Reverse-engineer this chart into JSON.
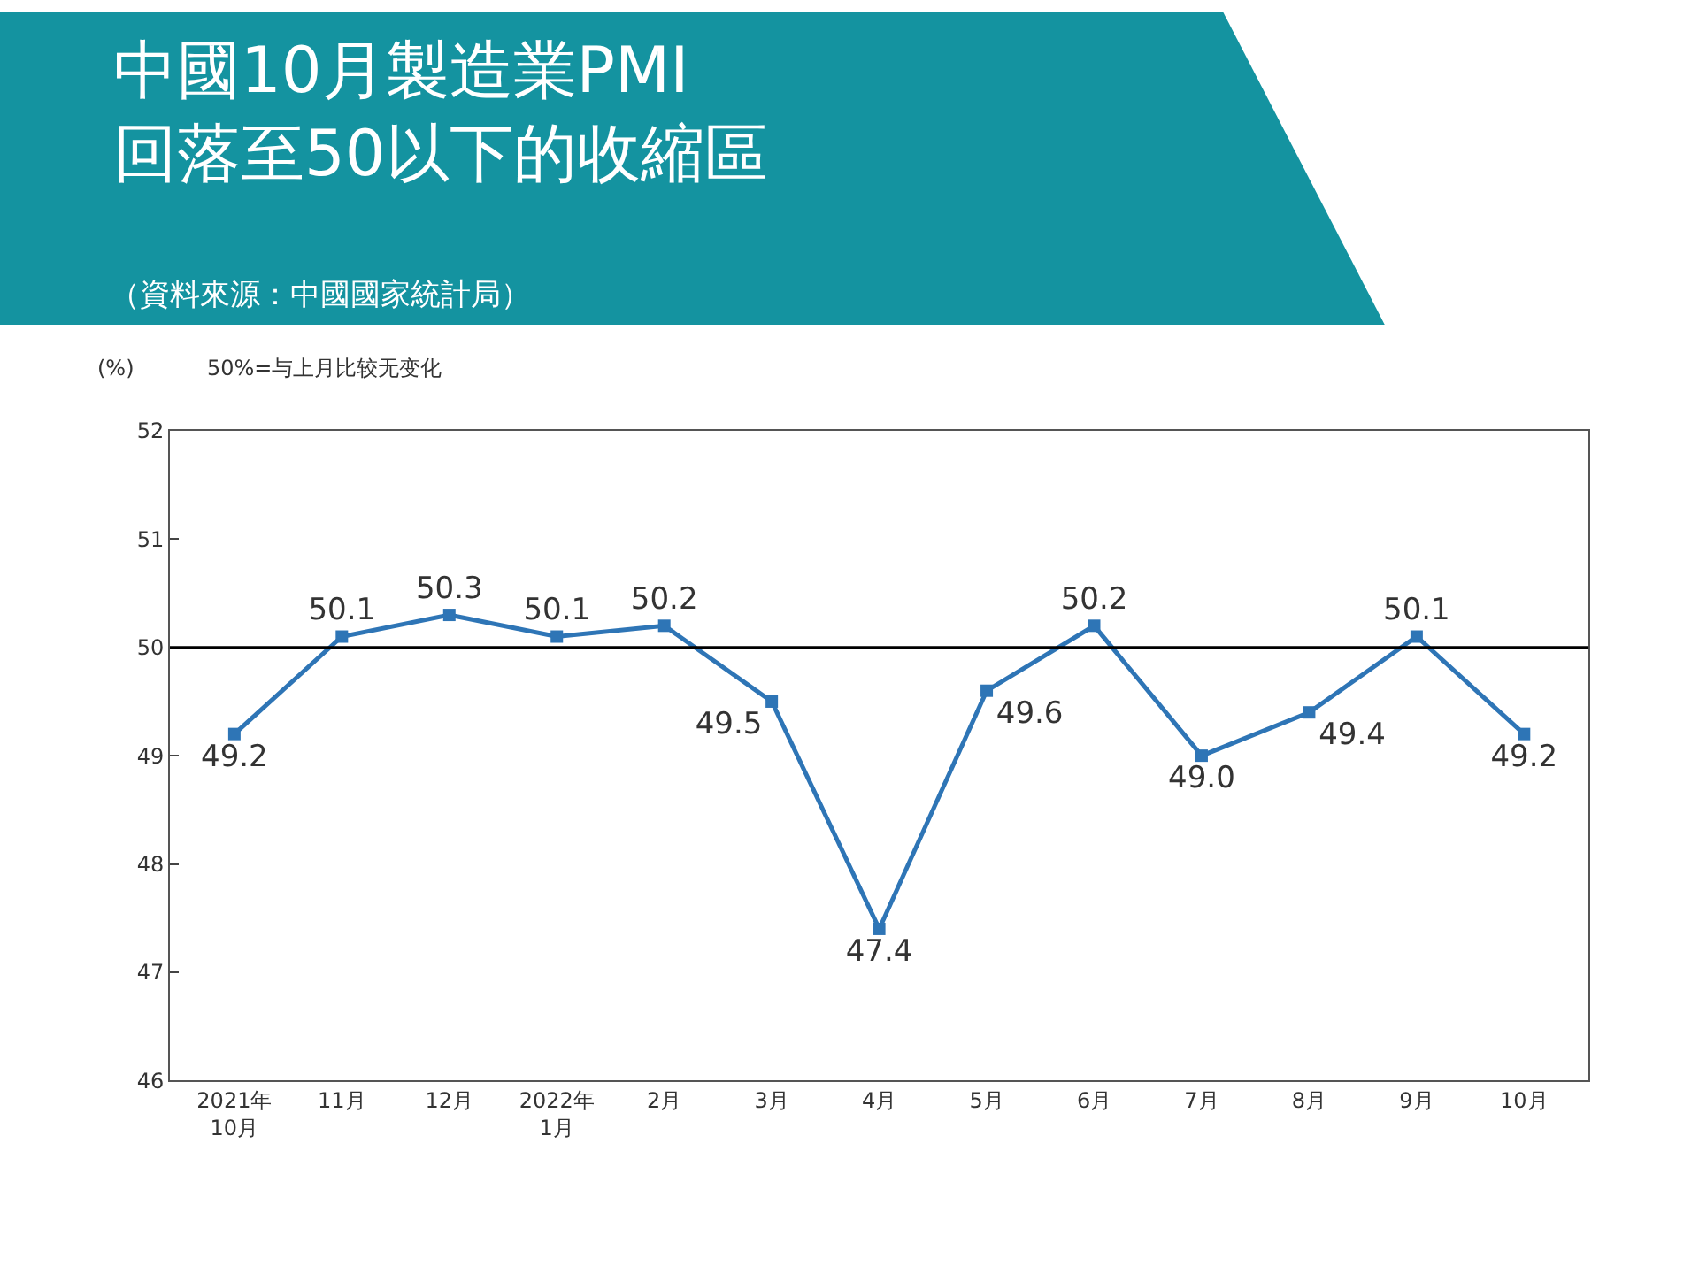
{
  "chart_data": {
    "type": "line",
    "title": "中國10月製造業PMI\n回落至50以下的收縮區",
    "subtitle": "（資料來源：中國國家統計局）",
    "ylabel": "(%)",
    "annotations": [
      "50%=与上月比较无变化"
    ],
    "categories": [
      "2021年\n10月",
      "11月",
      "12月",
      "2022年\n1月",
      "2月",
      "3月",
      "4月",
      "5月",
      "6月",
      "7月",
      "8月",
      "9月",
      "10月"
    ],
    "series": [
      {
        "color": "#2e75b6",
        "values": [
          49.2,
          50.1,
          50.3,
          50.1,
          50.2,
          49.5,
          47.4,
          49.6,
          50.2,
          49.0,
          49.4,
          50.1,
          49.2
        ],
        "value_labels": [
          "49.2",
          "50.1",
          "50.3",
          "50.1",
          "50.2",
          "49.5",
          "47.4",
          "49.6",
          "50.2",
          "49.0",
          "49.4",
          "50.1",
          "49.2"
        ]
      }
    ],
    "ylim": [
      46,
      52
    ],
    "yticks": [
      46,
      47,
      48,
      49,
      50,
      51,
      52
    ],
    "ref_lines": [
      {
        "axis": "y",
        "value": 50,
        "color": "#000000"
      }
    ],
    "marker": "square",
    "line_style": "solid"
  }
}
